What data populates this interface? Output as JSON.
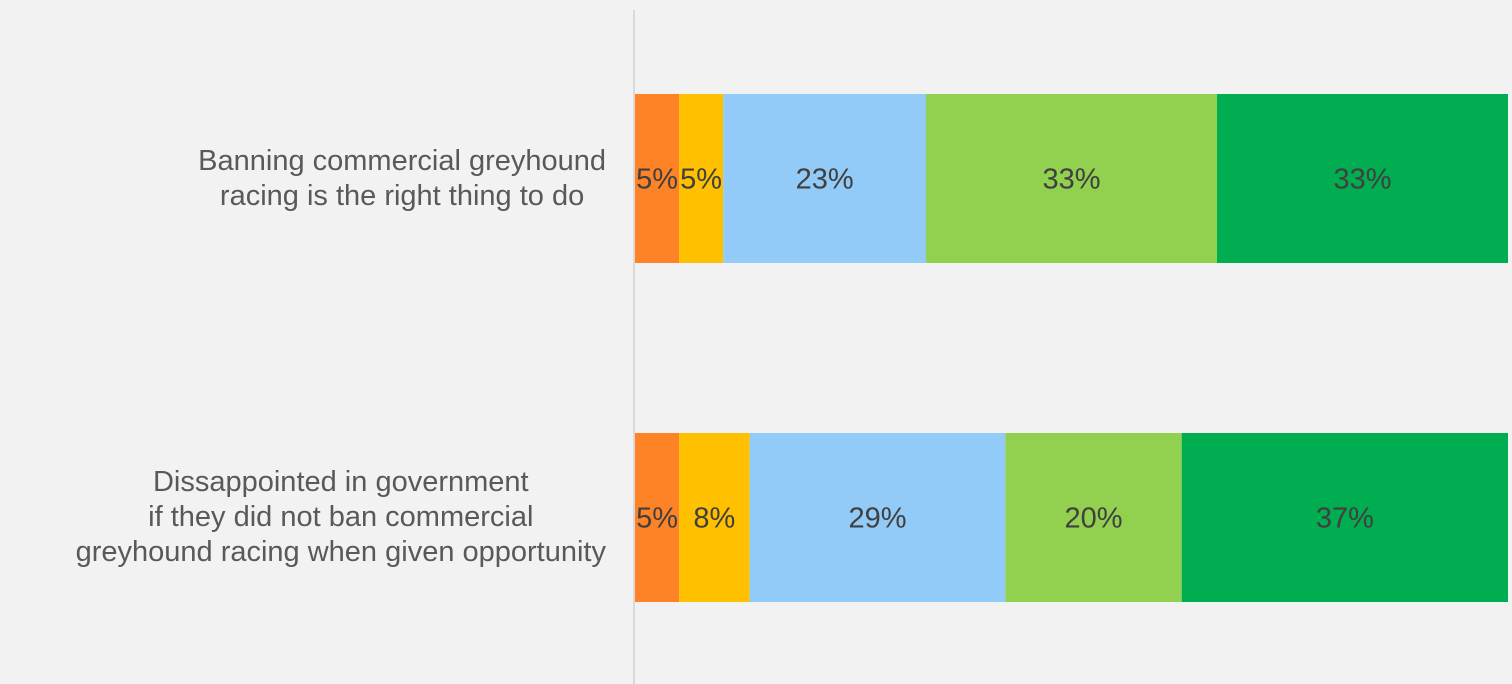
{
  "chart_data": {
    "type": "bar",
    "orientation": "horizontal",
    "stacked": true,
    "categories": [
      "Banning commercial greyhound\nracing is the right thing to do",
      "Dissappointed in government\nif they did not ban commercial\ngreyhound racing when given opportunity"
    ],
    "series": [
      {
        "color": "#fe8226",
        "values": [
          5,
          5
        ]
      },
      {
        "color": "#ffc000",
        "values": [
          5,
          8
        ]
      },
      {
        "color": "#92cbf7",
        "values": [
          23,
          29
        ]
      },
      {
        "color": "#92d050",
        "values": [
          33,
          20
        ]
      },
      {
        "color": "#00ad50",
        "values": [
          33,
          37
        ]
      }
    ],
    "data_labels": [
      [
        "5%",
        "5%",
        "23%",
        "33%",
        "33%"
      ],
      [
        "5%",
        "8%",
        "29%",
        "20%",
        "37%"
      ]
    ],
    "xlim": [
      0,
      100
    ],
    "grid": false,
    "legend": "none",
    "title": "",
    "xlabel": "",
    "ylabel": ""
  }
}
